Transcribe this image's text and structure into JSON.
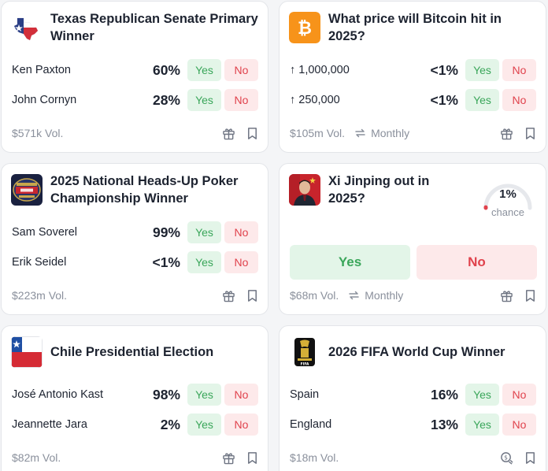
{
  "colors": {
    "yes_bg": "#e3f5e8",
    "yes_text": "#3aa65a",
    "no_bg": "#fde9ea",
    "no_text": "#e0424c",
    "muted": "#8a909c"
  },
  "markets": [
    {
      "title": "Texas Republican Senate Primary Winner",
      "icon": "texas-flag-icon",
      "outcomes": [
        {
          "label": "Ken Paxton",
          "pct": "60%",
          "yes": "Yes",
          "no": "No"
        },
        {
          "label": "John Cornyn",
          "pct": "28%",
          "yes": "Yes",
          "no": "No"
        }
      ],
      "volume": "$571k Vol."
    },
    {
      "title": "What price will Bitcoin hit in 2025?",
      "icon": "bitcoin-icon",
      "outcomes": [
        {
          "label": "↑ 1,000,000",
          "pct": "<1%",
          "yes": "Yes",
          "no": "No"
        },
        {
          "label": "↑ 250,000",
          "pct": "<1%",
          "yes": "Yes",
          "no": "No"
        }
      ],
      "volume": "$105m Vol.",
      "recurrence": "Monthly"
    },
    {
      "title": "2025 National Heads-Up Poker Championship Winner",
      "icon": "poker-championship-logo",
      "outcomes": [
        {
          "label": "Sam Soverel",
          "pct": "99%",
          "yes": "Yes",
          "no": "No"
        },
        {
          "label": "Erik Seidel",
          "pct": "<1%",
          "yes": "Yes",
          "no": "No"
        }
      ],
      "volume": "$223m Vol."
    },
    {
      "title": "Xi Jinping out in 2025?",
      "icon": "xi-jinping-photo",
      "chance": "1%",
      "chance_label": "chance",
      "chance_value": 0.01,
      "yes": "Yes",
      "no": "No",
      "volume": "$68m Vol.",
      "recurrence": "Monthly"
    },
    {
      "title": "Chile Presidential Election",
      "icon": "chile-flag-icon",
      "outcomes": [
        {
          "label": "José Antonio Kast",
          "pct": "98%",
          "yes": "Yes",
          "no": "No"
        },
        {
          "label": "Jeannette Jara",
          "pct": "2%",
          "yes": "Yes",
          "no": "No"
        }
      ],
      "volume": "$82m Vol."
    },
    {
      "title": "2026 FIFA World Cup Winner",
      "icon": "fifa-world-cup-logo",
      "outcomes": [
        {
          "label": "Spain",
          "pct": "16%",
          "yes": "Yes",
          "no": "No"
        },
        {
          "label": "England",
          "pct": "13%",
          "yes": "Yes",
          "no": "No"
        }
      ],
      "volume": "$18m Vol."
    }
  ]
}
